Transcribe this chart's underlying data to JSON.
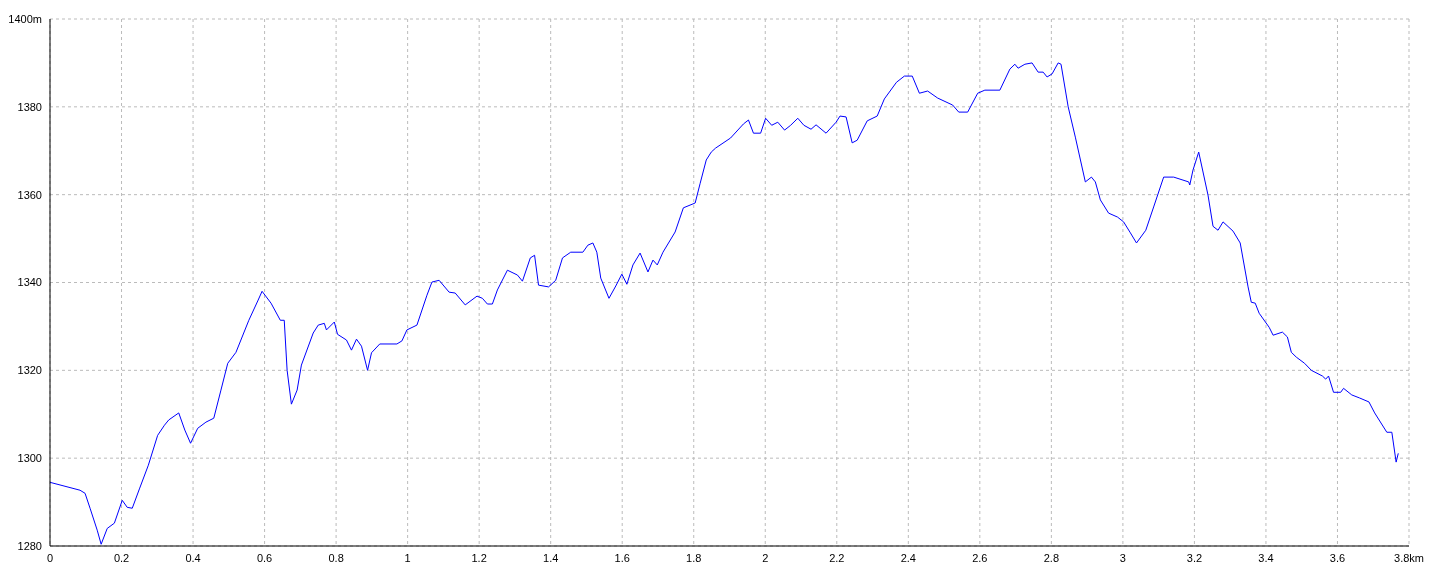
{
  "chart_data": {
    "type": "line",
    "x": [
      0,
      0.084,
      0.098,
      0.112,
      0.132,
      0.143,
      0.16,
      0.18,
      0.202,
      0.216,
      0.23,
      0.25,
      0.275,
      0.301,
      0.32,
      0.332,
      0.36,
      0.377,
      0.393,
      0.413,
      0.436,
      0.458,
      0.478,
      0.497,
      0.52,
      0.556,
      0.582,
      0.593,
      0.618,
      0.644,
      0.655,
      0.663,
      0.675,
      0.691,
      0.703,
      0.736,
      0.75,
      0.767,
      0.773,
      0.795,
      0.804,
      0.829,
      0.843,
      0.857,
      0.871,
      0.888,
      0.899,
      0.922,
      0.97,
      0.984,
      0.998,
      1.026,
      1.054,
      1.068,
      1.088,
      1.116,
      1.133,
      1.161,
      1.194,
      1.209,
      1.223,
      1.237,
      1.251,
      1.279,
      1.307,
      1.321,
      1.343,
      1.355,
      1.366,
      1.394,
      1.414,
      1.433,
      1.456,
      1.49,
      1.504,
      1.518,
      1.529,
      1.54,
      1.563,
      1.582,
      1.599,
      1.613,
      1.63,
      1.65,
      1.672,
      1.686,
      1.698,
      1.714,
      1.748,
      1.771,
      1.804,
      1.818,
      1.835,
      1.849,
      1.861,
      1.903,
      1.939,
      1.953,
      1.967,
      1.987,
      2.001,
      2.018,
      2.035,
      2.054,
      2.071,
      2.091,
      2.108,
      2.128,
      2.142,
      2.17,
      2.198,
      2.209,
      2.226,
      2.243,
      2.257,
      2.285,
      2.313,
      2.333,
      2.367,
      2.389,
      2.411,
      2.431,
      2.454,
      2.482,
      2.524,
      2.541,
      2.566,
      2.594,
      2.614,
      2.656,
      2.684,
      2.698,
      2.707,
      2.726,
      2.746,
      2.763,
      2.777,
      2.788,
      2.802,
      2.819,
      2.827,
      2.847,
      2.867,
      2.895,
      2.912,
      2.923,
      2.937,
      2.96,
      2.985,
      3.002,
      3.021,
      3.038,
      3.064,
      3.086,
      3.114,
      3.142,
      3.184,
      3.187,
      3.196,
      3.212,
      3.238,
      3.252,
      3.266,
      3.28,
      3.308,
      3.328,
      3.35,
      3.359,
      3.37,
      3.381,
      3.409,
      3.42,
      3.446,
      3.46,
      3.471,
      3.485,
      3.508,
      3.527,
      3.558,
      3.567,
      3.575,
      3.589,
      3.609,
      3.617,
      3.64,
      3.662,
      3.688,
      3.704,
      3.738,
      3.752,
      3.764,
      3.77
    ],
    "series": [
      {
        "color": "#0000ff",
        "values": [
          1294.5,
          1292.7,
          1292,
          1288.6,
          1283.6,
          1280.4,
          1284,
          1285.2,
          1290.4,
          1288.8,
          1288.6,
          1293,
          1298.4,
          1305.2,
          1307.5,
          1308.7,
          1310.3,
          1306.4,
          1303.4,
          1306.8,
          1308.2,
          1309.1,
          1315.5,
          1321.6,
          1324.1,
          1331.4,
          1336,
          1338,
          1335.3,
          1331.4,
          1331.4,
          1320,
          1312.3,
          1315.5,
          1321.2,
          1328.5,
          1330.3,
          1330.7,
          1329.2,
          1331,
          1328.2,
          1326.9,
          1324.6,
          1327.1,
          1325.5,
          1320,
          1324,
          1326,
          1326,
          1326.7,
          1329.2,
          1330.3,
          1337.1,
          1340.1,
          1340.5,
          1337.8,
          1337.6,
          1334.9,
          1336.9,
          1336.4,
          1335.1,
          1335.1,
          1338.3,
          1342.8,
          1341.7,
          1340.3,
          1345.6,
          1346.2,
          1339.4,
          1339,
          1340.5,
          1345.6,
          1346.9,
          1346.9,
          1348.5,
          1349,
          1346.9,
          1341,
          1336.4,
          1339.2,
          1341.9,
          1339.6,
          1344,
          1346.7,
          1342.4,
          1345.1,
          1344,
          1346.9,
          1351.5,
          1357,
          1358.1,
          1362.6,
          1367.9,
          1369.7,
          1370.6,
          1372.9,
          1376.1,
          1377,
          1374,
          1374,
          1377.4,
          1375.8,
          1376.5,
          1374.7,
          1375.8,
          1377.4,
          1375.8,
          1374.9,
          1375.9,
          1374,
          1376.5,
          1377.9,
          1377.7,
          1371.8,
          1372.4,
          1376.8,
          1377.9,
          1381.8,
          1385.6,
          1387,
          1387,
          1383.1,
          1383.6,
          1382,
          1380.4,
          1378.8,
          1378.8,
          1383.1,
          1383.8,
          1383.8,
          1388.6,
          1389.7,
          1388.8,
          1389.7,
          1390,
          1387.9,
          1387.9,
          1386.8,
          1387.5,
          1390,
          1389.7,
          1380,
          1373.1,
          1362.9,
          1364,
          1362.9,
          1358.8,
          1355.8,
          1354.9,
          1353.8,
          1351.3,
          1349,
          1351.9,
          1357.2,
          1364,
          1364,
          1362.9,
          1362.2,
          1365.6,
          1369.7,
          1359.9,
          1352.8,
          1351.9,
          1353.8,
          1351.7,
          1349,
          1339,
          1335.5,
          1335.3,
          1333,
          1329.8,
          1328,
          1328.7,
          1327.6,
          1324.1,
          1323,
          1321.6,
          1320,
          1318.7,
          1318,
          1318.7,
          1315,
          1315,
          1315.9,
          1314.4,
          1313.7,
          1312.8,
          1310.3,
          1305.9,
          1305.9,
          1299.1,
          1301.1
        ]
      }
    ],
    "xlim": [
      0,
      3.8
    ],
    "xticks": [
      0,
      0.2,
      0.4,
      0.6,
      0.8,
      1,
      1.2,
      1.4,
      1.6,
      1.8,
      2,
      2.2,
      2.4,
      2.6,
      2.8,
      3,
      3.2,
      3.4,
      3.6,
      {
        "value": 3.8,
        "label": "3.8km"
      }
    ],
    "ylim": [
      1280,
      1400
    ],
    "yticks": [
      1280,
      1300,
      1320,
      1340,
      1360,
      1380,
      {
        "value": 1400,
        "label": "1400m"
      }
    ],
    "grid": true
  }
}
